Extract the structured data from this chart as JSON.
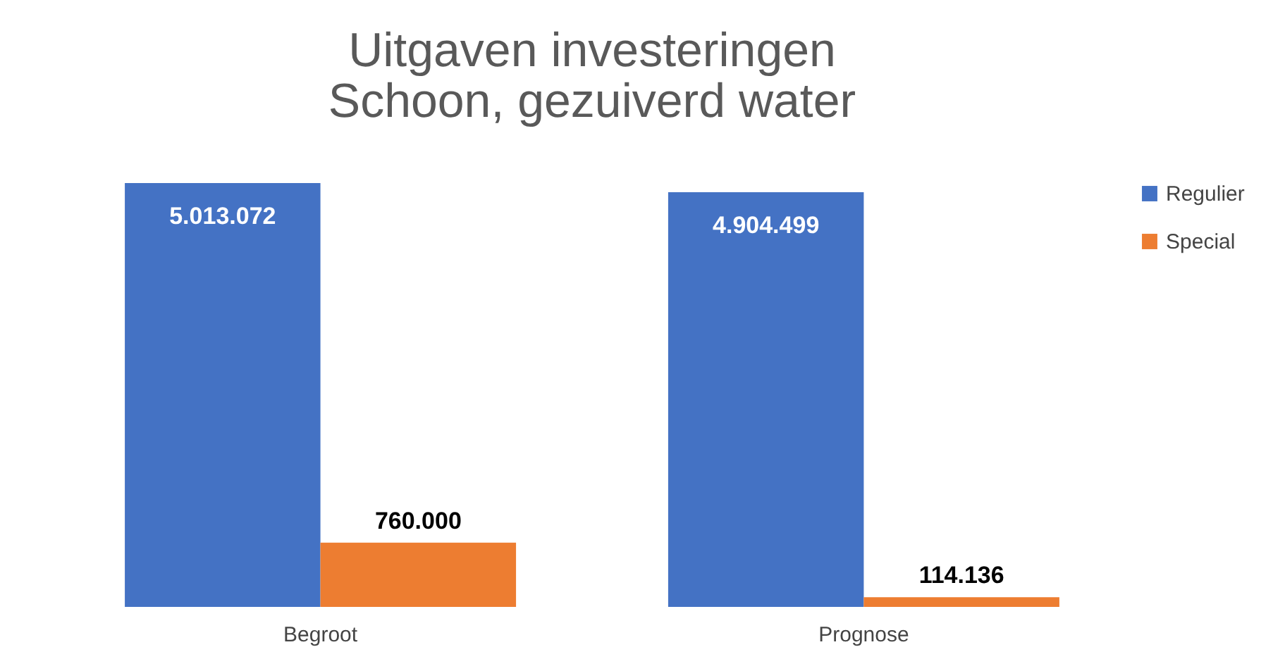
{
  "chart_data": {
    "type": "bar",
    "title": "Uitgaven investeringen\nSchoon, gezuiverd water",
    "categories": [
      "Begroot",
      "Prognose"
    ],
    "series": [
      {
        "name": "Regulier",
        "color": "#4472c4",
        "values": [
          5013072,
          4904499
        ],
        "value_labels": [
          "5.013.072",
          "4.904.499"
        ]
      },
      {
        "name": "Special",
        "color": "#ed7d31",
        "values": [
          760000,
          114136
        ],
        "value_labels": [
          "760.000",
          "114.136"
        ]
      }
    ],
    "legend": "right",
    "grid": false
  }
}
